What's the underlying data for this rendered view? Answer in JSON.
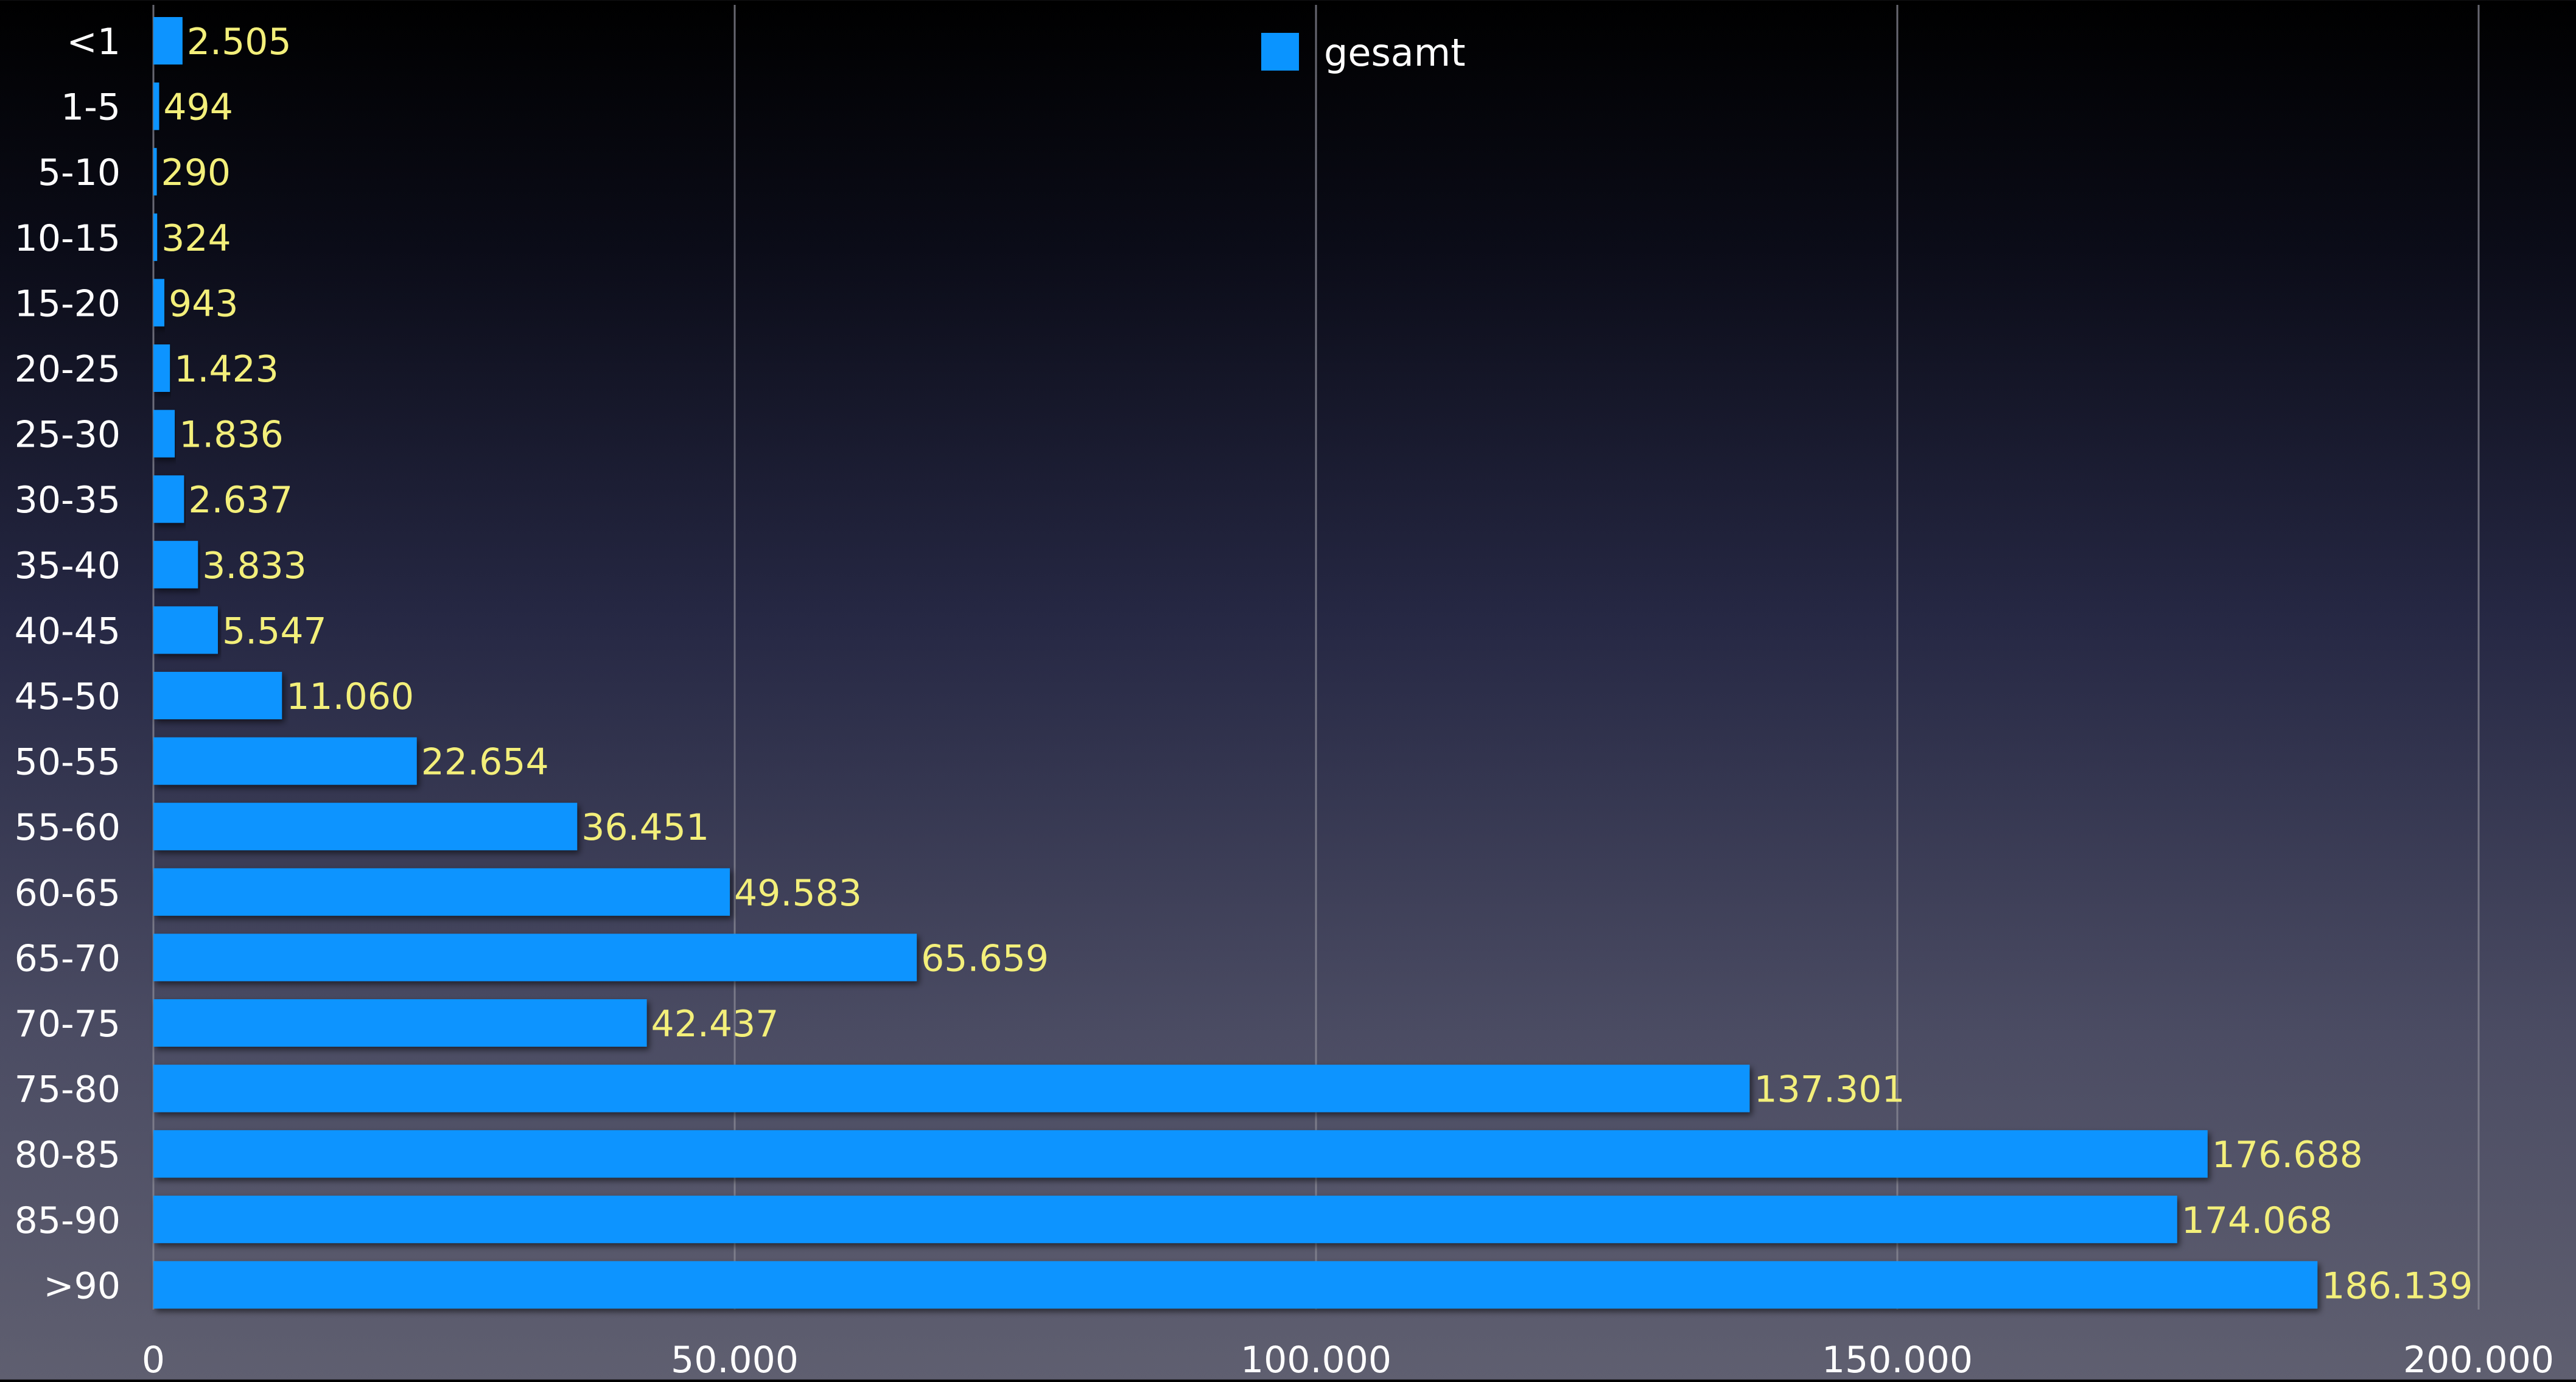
{
  "chart_data": {
    "type": "bar",
    "orientation": "horizontal",
    "categories": [
      "<1",
      "1-5",
      "5-10",
      "10-15",
      "15-20",
      "20-25",
      "25-30",
      "30-35",
      "35-40",
      "40-45",
      "45-50",
      "50-55",
      "55-60",
      "60-65",
      "65-70",
      "70-75",
      "75-80",
      "80-85",
      "85-90",
      ">90"
    ],
    "series": [
      {
        "name": "gesamt",
        "values": [
          2505,
          494,
          290,
          324,
          943,
          1423,
          1836,
          2637,
          3833,
          5547,
          11060,
          22654,
          36451,
          49583,
          65659,
          42437,
          137301,
          176688,
          174068,
          186139
        ],
        "labels": [
          "2.505",
          "494",
          "290",
          "324",
          "943",
          "1.423",
          "1.836",
          "2.637",
          "3.833",
          "5.547",
          "11.060",
          "22.654",
          "36.451",
          "49.583",
          "65.659",
          "42.437",
          "137.301",
          "176.688",
          "174.068",
          "186.139"
        ]
      }
    ],
    "xlim": [
      0,
      200000
    ],
    "xticks": [
      0,
      50000,
      100000,
      150000,
      200000
    ],
    "xtick_labels": [
      "0",
      "50.000",
      "100.000",
      "150.000",
      "200.000"
    ],
    "grid": true,
    "legend": "top-center",
    "title": "",
    "xlabel": "",
    "ylabel": "",
    "colors": {
      "bar": "#0a94ff",
      "value_label": "#f3ef7a",
      "text": "#ffffff",
      "grid": "#8a8a96"
    }
  }
}
